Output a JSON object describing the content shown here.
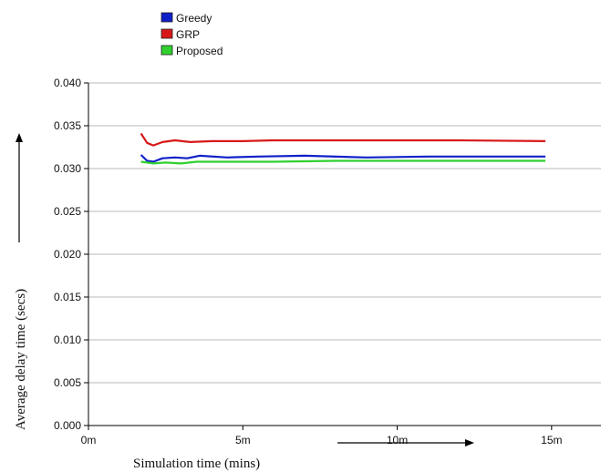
{
  "chart_data": {
    "type": "line",
    "xlabel": "Simulation time (mins)",
    "ylabel": "Average delay time (secs)",
    "x_ticks": [
      "0m",
      "5m",
      "10m",
      "15m"
    ],
    "y_ticks": [
      "0.000",
      "0.005",
      "0.010",
      "0.015",
      "0.020",
      "0.025",
      "0.030",
      "0.035",
      "0.040"
    ],
    "xlim": [
      0,
      16.6
    ],
    "ylim": [
      0,
      0.04
    ],
    "grid": "horizontal",
    "legend_position": "top-left",
    "series": [
      {
        "name": "Greedy",
        "color": "#1020c8",
        "x": [
          1.7,
          1.9,
          2.1,
          2.4,
          2.8,
          3.2,
          3.6,
          4.5,
          5.5,
          7,
          9,
          11,
          13,
          14.8
        ],
        "values": [
          0.0316,
          0.0309,
          0.0308,
          0.0312,
          0.0313,
          0.0312,
          0.0315,
          0.0313,
          0.0314,
          0.0315,
          0.0313,
          0.0314,
          0.0314,
          0.0314
        ]
      },
      {
        "name": "GRP",
        "color": "#d81818",
        "x": [
          1.7,
          1.9,
          2.1,
          2.4,
          2.8,
          3.3,
          4,
          5,
          6,
          8,
          10,
          12,
          14.8
        ],
        "values": [
          0.0341,
          0.033,
          0.0327,
          0.0331,
          0.0333,
          0.0331,
          0.0332,
          0.0332,
          0.0333,
          0.0333,
          0.0333,
          0.0333,
          0.0332
        ]
      },
      {
        "name": "Proposed",
        "color": "#30d030",
        "x": [
          1.7,
          1.9,
          2.1,
          2.5,
          3,
          3.5,
          4.5,
          6,
          8,
          10,
          12,
          14.8
        ],
        "values": [
          0.0308,
          0.0307,
          0.0306,
          0.0307,
          0.0306,
          0.0308,
          0.0308,
          0.0308,
          0.0309,
          0.0309,
          0.0309,
          0.0309
        ]
      }
    ]
  }
}
